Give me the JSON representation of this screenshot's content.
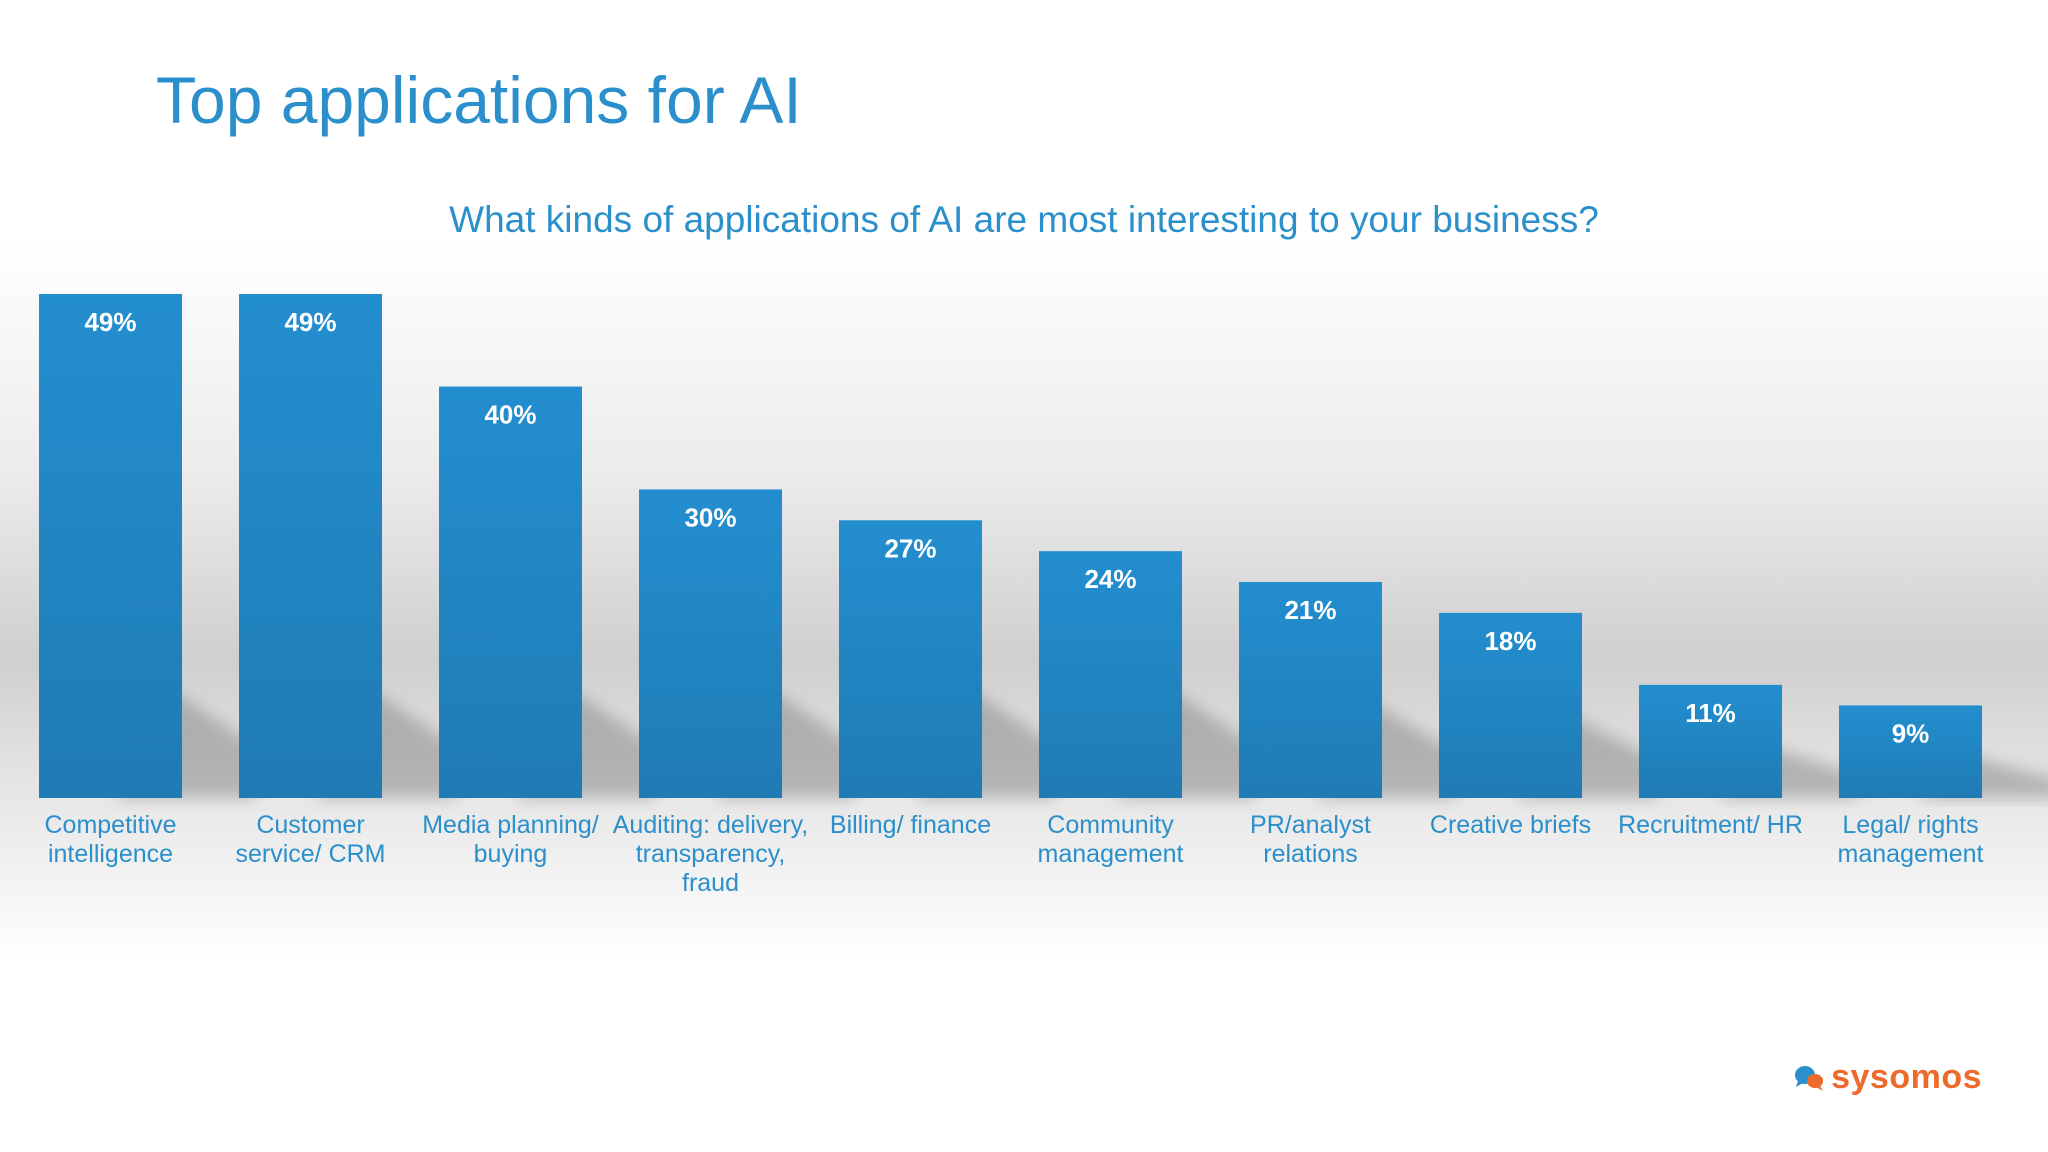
{
  "title": "Top applications for AI",
  "brand": {
    "name": "sysomos",
    "icon": "chat-bubbles-icon",
    "color": "#ee6a2a"
  },
  "colors": {
    "accent": "#2a8fcb",
    "bar_top": "#238ecf",
    "bar_bottom": "#1f7bb4",
    "bar_label": "#ffffff"
  },
  "chart_data": {
    "type": "bar",
    "title": "What kinds of applications of AI are most interesting to your business?",
    "xlabel": "",
    "ylabel": "",
    "ylim": [
      0,
      49
    ],
    "grid": false,
    "unit": "%",
    "categories": [
      "Competitive intelligence",
      "Customer service/ CRM",
      "Media planning/ buying",
      "Auditing: delivery, transparency, fraud",
      "Billing/ finance",
      "Community management",
      "PR/analyst relations",
      "Creative briefs",
      "Recruitment/ HR",
      "Legal/ rights management"
    ],
    "values": [
      49,
      49,
      40,
      30,
      27,
      24,
      21,
      18,
      11,
      9
    ],
    "data_labels": [
      "49%",
      "49%",
      "40%",
      "30%",
      "27%",
      "24%",
      "21%",
      "18%",
      "11%",
      "9%"
    ]
  }
}
